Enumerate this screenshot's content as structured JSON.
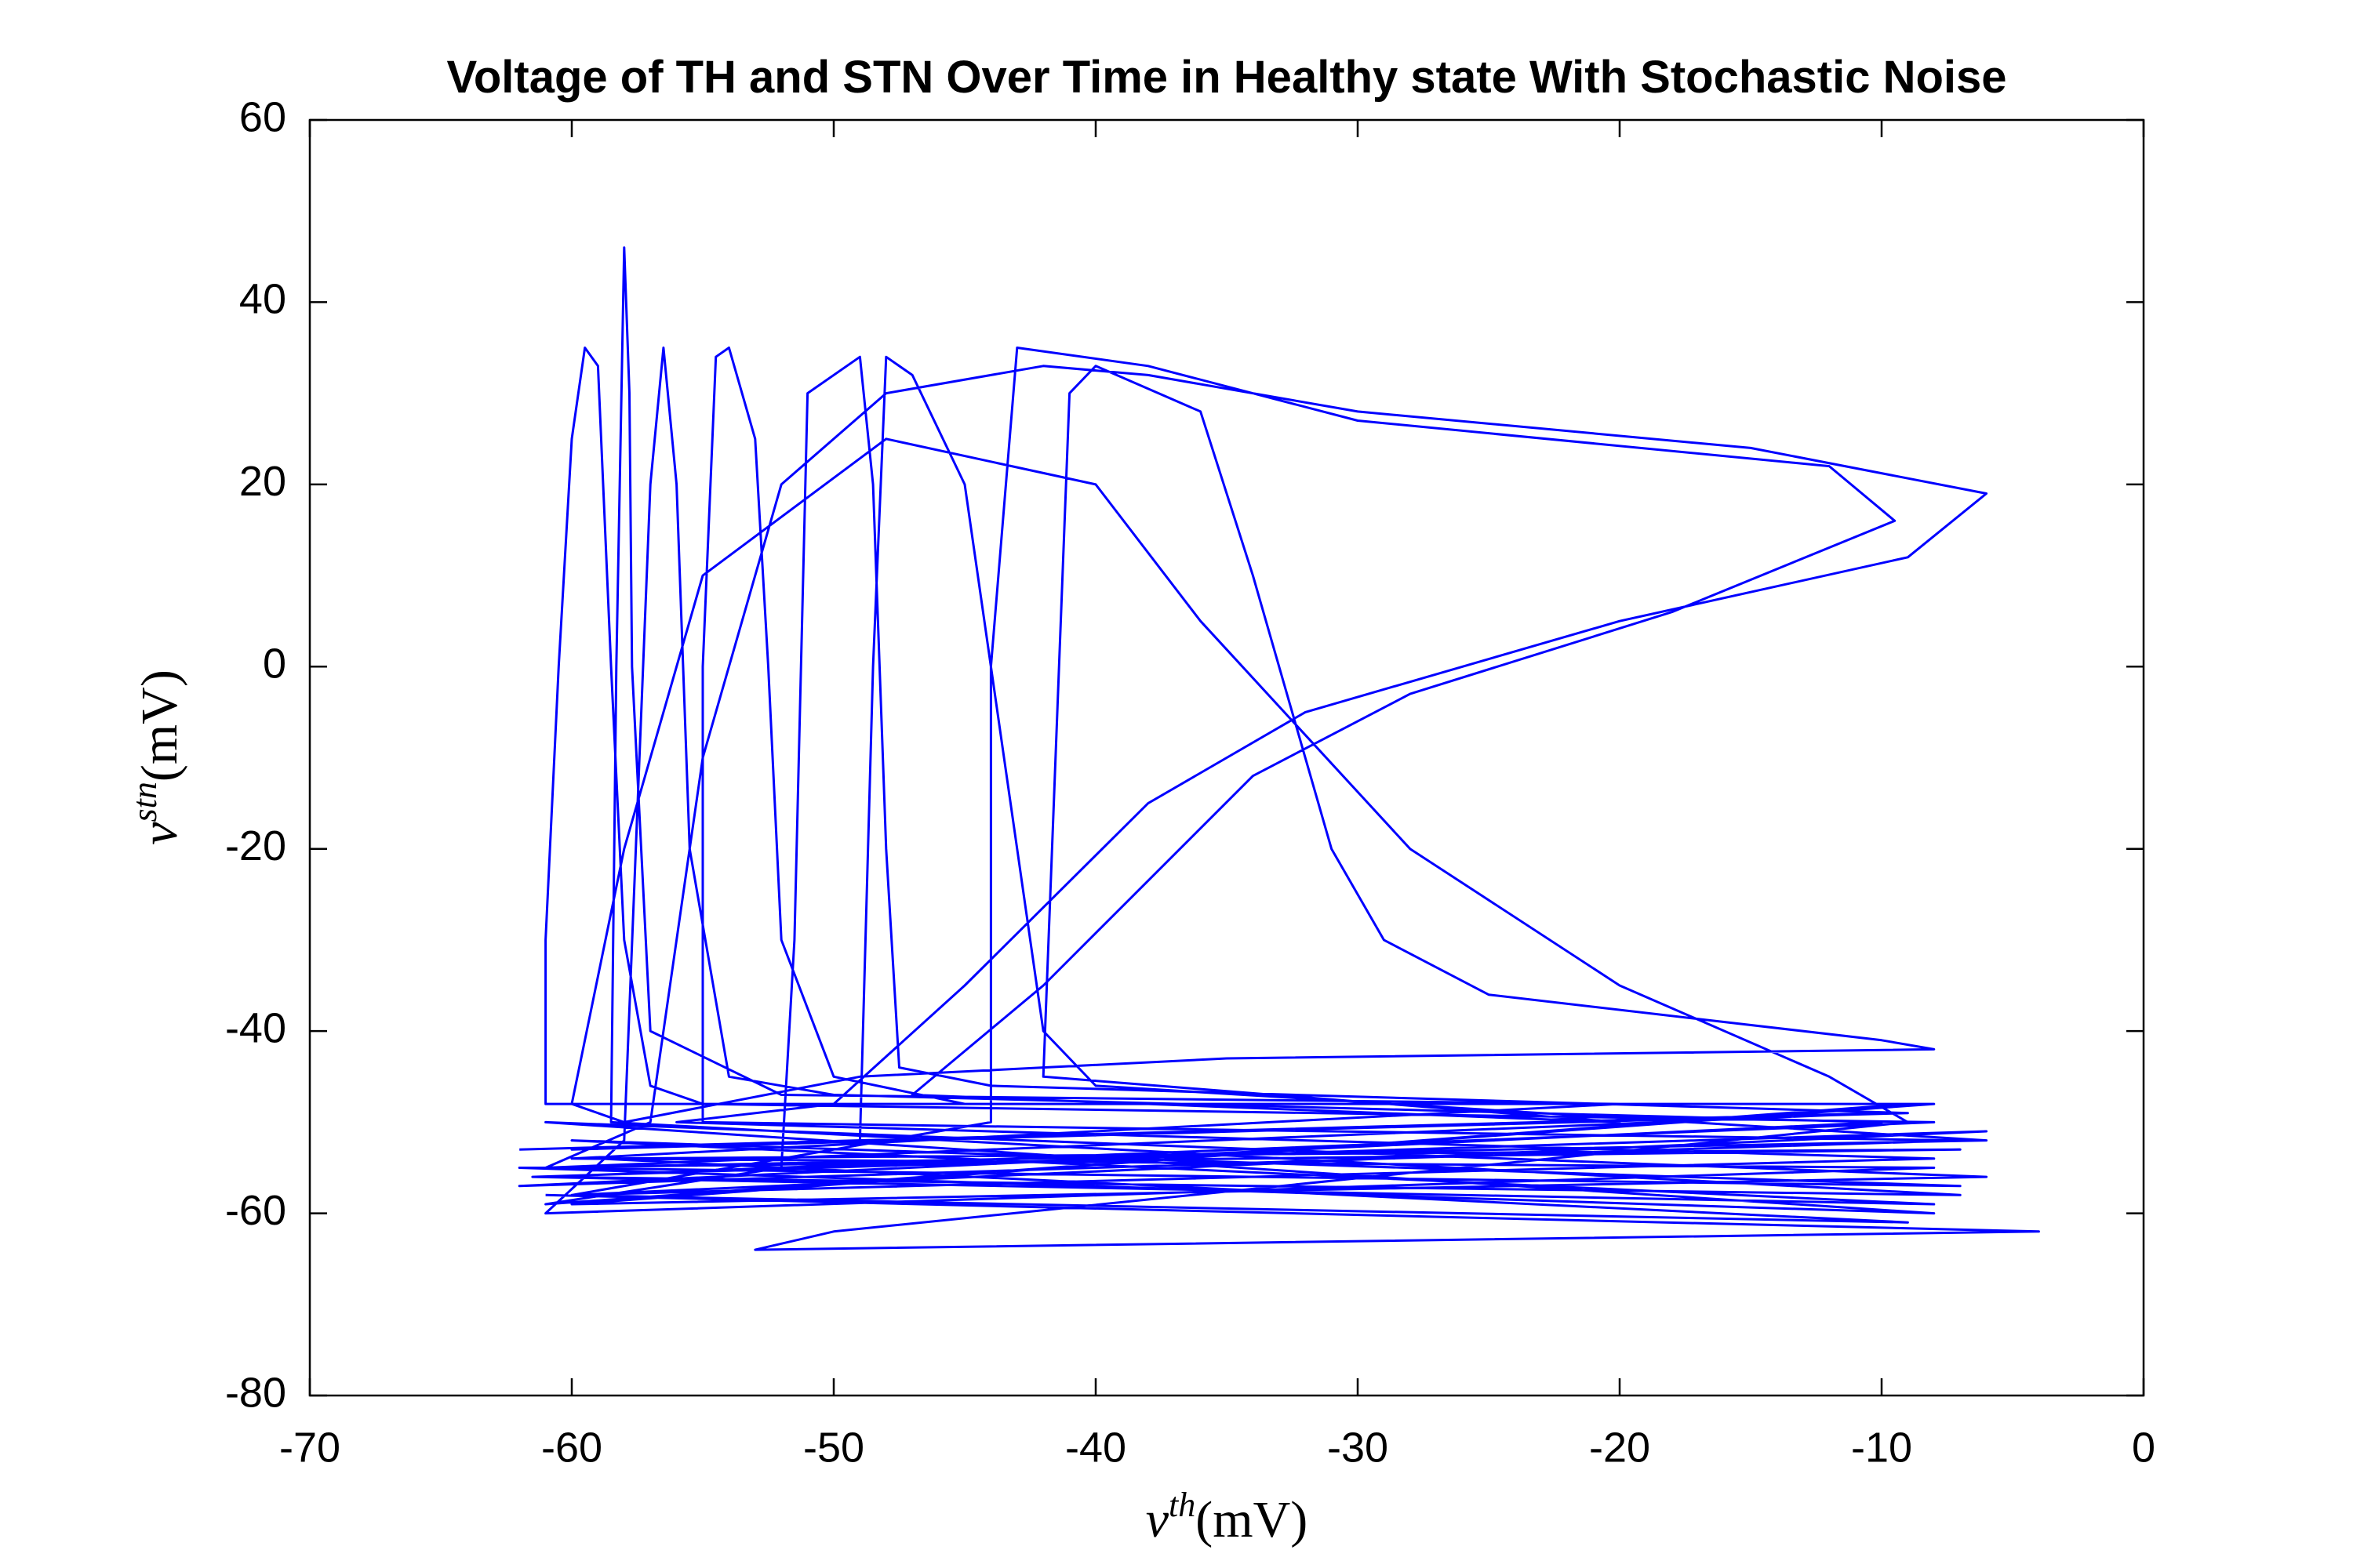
{
  "chart_data": {
    "type": "line",
    "title": "Voltage of TH and STN Over Time in Healthy state With Stochastic Noise",
    "x_label": {
      "symbol": "v",
      "superscript": "th",
      "unit": "(mV)"
    },
    "y_label": {
      "symbol": "v",
      "superscript": "stn",
      "unit": "(mV)"
    },
    "xlim": [
      -70,
      0
    ],
    "xticks": [
      -70,
      -60,
      -50,
      -40,
      -30,
      -20,
      -10,
      0
    ],
    "ylim": [
      -80,
      60
    ],
    "yticks": [
      -80,
      -60,
      -40,
      -20,
      0,
      20,
      40,
      60
    ],
    "grid": false,
    "series": [
      {
        "color": "#0000ff",
        "x": [
          -62,
          -10,
          -61,
          -7,
          -60,
          -8,
          -61.5,
          -6,
          -60,
          -9,
          -59,
          -7,
          -62,
          -8,
          -61,
          -6,
          -60,
          -9,
          -61,
          -61,
          -60.5,
          -60,
          -59.5,
          -59,
          -58.5,
          -58,
          -57,
          -55,
          -8,
          -61,
          -7,
          -58.5,
          -58.3,
          -58,
          -57.8,
          -57.7,
          -57,
          -52,
          -20,
          -60,
          -8,
          -61,
          -58,
          -57,
          -56.5,
          -56,
          -55.5,
          -54,
          -50,
          -10,
          -62,
          -7,
          -55,
          -55,
          -54.5,
          -54,
          -53,
          -52.5,
          -52,
          -50,
          -45,
          -8,
          -61,
          -52,
          -51.5,
          -51,
          -49,
          -48.5,
          -48,
          -47.5,
          -44,
          -9,
          -60,
          -49,
          -48.5,
          -48,
          -47,
          -45,
          -43,
          -42,
          -40,
          -6,
          -61,
          -57,
          -55,
          -52,
          -48,
          -42,
          -38,
          -30,
          -15,
          -6,
          -9,
          -20,
          -32,
          -38,
          -45,
          -50,
          -56,
          -8,
          -60,
          -44,
          -44,
          -43,
          -38,
          -30,
          -12,
          -9.5,
          -18,
          -28,
          -34,
          -42,
          -47,
          -20,
          -42,
          -41,
          -40,
          -36,
          -34,
          -31,
          -29,
          -25,
          -10,
          -8,
          -35,
          -49,
          -58,
          -60,
          -58,
          -55,
          -48,
          -40,
          -36,
          -28,
          -20,
          -12,
          -9,
          -50,
          -53,
          -4,
          -61
        ],
        "y": [
          -53,
          -49,
          -55,
          -57,
          -52,
          -59,
          -56,
          -51,
          -58,
          -61,
          -54,
          -53,
          -55,
          -60,
          -50,
          -56,
          -59,
          -48,
          -48,
          -30,
          0,
          25,
          35,
          33,
          0,
          -30,
          -46,
          -48,
          -50,
          -56,
          -58,
          -50,
          0,
          46,
          30,
          0,
          -40,
          -47,
          -48,
          -54,
          -55,
          -60,
          -52,
          20,
          35,
          20,
          -20,
          -45,
          -47,
          -50,
          -57,
          -52,
          -50,
          0,
          34,
          35,
          25,
          0,
          -30,
          -45,
          -48,
          -48,
          -59,
          -55,
          -30,
          30,
          34,
          20,
          -20,
          -44,
          -46,
          -49,
          -53,
          -52,
          0,
          34,
          32,
          20,
          -20,
          -40,
          -46,
          -52,
          -55,
          -50,
          -10,
          20,
          30,
          33,
          32,
          28,
          24,
          19,
          12,
          5,
          -5,
          -15,
          -35,
          -48,
          -50,
          -54,
          -58,
          -50,
          0,
          35,
          33,
          27,
          22,
          16,
          6,
          -3,
          -12,
          -35,
          -47,
          -50,
          -45,
          30,
          33,
          28,
          10,
          -20,
          -30,
          -36,
          -41,
          -42,
          -43,
          -45,
          -50,
          -48,
          -20,
          10,
          25,
          20,
          5,
          -20,
          -35,
          -45,
          -50,
          -62,
          -64,
          -62,
          -58
        ]
      }
    ]
  }
}
